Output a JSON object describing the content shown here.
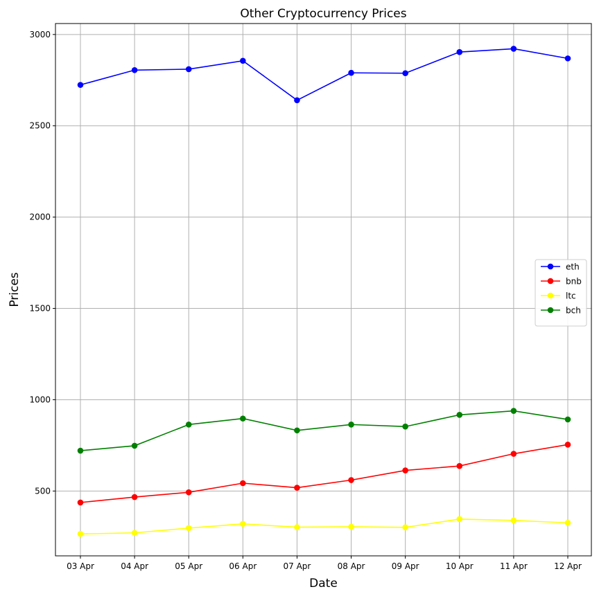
{
  "chart_data": {
    "type": "line",
    "title": "Other Cryptocurrency Prices",
    "xlabel": "Date",
    "ylabel": "Prices",
    "categories": [
      "03 Apr",
      "04 Apr",
      "05 Apr",
      "06 Apr",
      "07 Apr",
      "08 Apr",
      "09 Apr",
      "10 Apr",
      "11 Apr",
      "12 Apr"
    ],
    "yticks": [
      500,
      1000,
      1500,
      2000,
      2500,
      3000
    ],
    "ylim": [
      145,
      3060
    ],
    "grid": true,
    "legend_position": "center-right",
    "series": [
      {
        "name": "eth",
        "color": "#0000ff",
        "values": [
          2724,
          2805,
          2810,
          2856,
          2640,
          2790,
          2788,
          2904,
          2922,
          2869
        ]
      },
      {
        "name": "bnb",
        "color": "#ff0000",
        "values": [
          437,
          467,
          493,
          543,
          518,
          560,
          613,
          637,
          704,
          754
        ]
      },
      {
        "name": "ltc",
        "color": "#ffff00",
        "values": [
          265,
          271,
          297,
          320,
          302,
          304,
          301,
          346,
          339,
          326
        ]
      },
      {
        "name": "bch",
        "color": "#008000",
        "values": [
          721,
          748,
          864,
          897,
          832,
          864,
          853,
          917,
          939,
          892
        ]
      }
    ]
  }
}
